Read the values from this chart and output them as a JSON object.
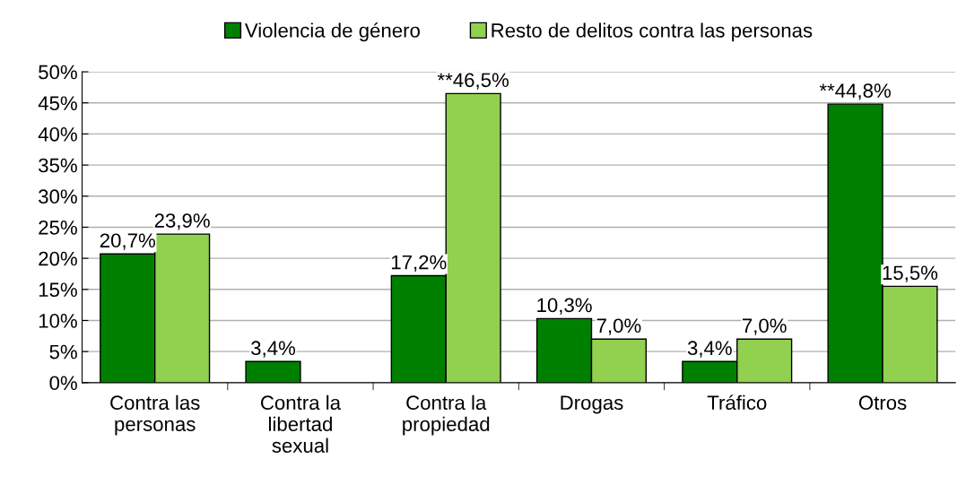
{
  "chart_data": {
    "type": "bar",
    "categories": [
      "Contra las\npersonas",
      "Contra la\nlibertad\nsexual",
      "Contra la\npropiedad",
      "Drogas",
      "Tráfico",
      "Otros"
    ],
    "series": [
      {
        "name": "Violencia de género",
        "color": "#008000",
        "values": [
          20.7,
          3.4,
          17.2,
          10.3,
          3.4,
          44.8
        ],
        "value_labels": [
          "20,7%",
          "3,4%",
          "17,2%",
          "10,3%",
          "3,4%",
          "**44,8%"
        ]
      },
      {
        "name": "Resto de delitos contra las personas",
        "color": "#92d050",
        "values": [
          23.9,
          null,
          46.5,
          7.0,
          7.0,
          15.5
        ],
        "value_labels": [
          "23,9%",
          null,
          "**46,5%",
          "7,0%",
          "7,0%",
          "15,5%"
        ]
      }
    ],
    "ylim": [
      0,
      50
    ],
    "yticks": [
      {
        "value": 0,
        "label": "0%"
      },
      {
        "value": 5,
        "label": "5%"
      },
      {
        "value": 10,
        "label": "10%"
      },
      {
        "value": 15,
        "label": "15%"
      },
      {
        "value": 20,
        "label": "20%"
      },
      {
        "value": 25,
        "label": "25%"
      },
      {
        "value": 30,
        "label": "30%"
      },
      {
        "value": 35,
        "label": "35%"
      },
      {
        "value": 40,
        "label": "40%"
      },
      {
        "value": 45,
        "label": "45%"
      },
      {
        "value": 50,
        "label": "50%"
      }
    ],
    "grid": "y",
    "legend": "top"
  }
}
